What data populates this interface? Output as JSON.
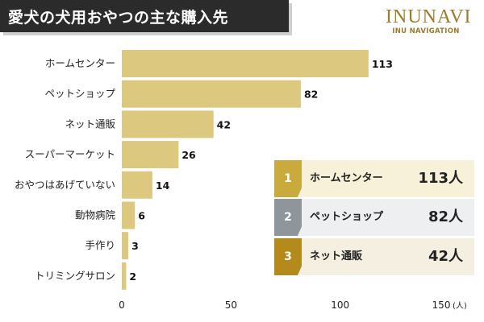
{
  "header": {
    "title": "愛犬の犬用おやつの主な購入先",
    "logo_main": "INUNAVI",
    "logo_sub": "INU NAVIGATION"
  },
  "chart_data": {
    "type": "bar",
    "orientation": "horizontal",
    "title": "愛犬の犬用おやつの主な購入先",
    "categories": [
      "ホームセンター",
      "ペットショップ",
      "ネット通販",
      "スーパーマーケット",
      "おやつはあげていない",
      "動物病院",
      "手作り",
      "トリミングサロン"
    ],
    "values": [
      113,
      82,
      42,
      26,
      14,
      6,
      3,
      2
    ],
    "xlim": [
      0,
      150
    ],
    "xticks": [
      0,
      50,
      100,
      150
    ],
    "x_unit": "(人)",
    "xlabel": "",
    "ylabel": "",
    "bar_color": "#dcc97f",
    "grid": false
  },
  "ranking": [
    {
      "rank": "1",
      "name": "ホームセンター",
      "count": "113人",
      "badge_color": "#c9ab3d",
      "bg_color": "#f7f1d9"
    },
    {
      "rank": "2",
      "name": "ペットショップ",
      "count": "82人",
      "badge_color": "#8e969c",
      "bg_color": "#eeeff1"
    },
    {
      "rank": "3",
      "name": "ネット通販",
      "count": "42人",
      "badge_color": "#b48a1c",
      "bg_color": "#f5efe2"
    }
  ]
}
